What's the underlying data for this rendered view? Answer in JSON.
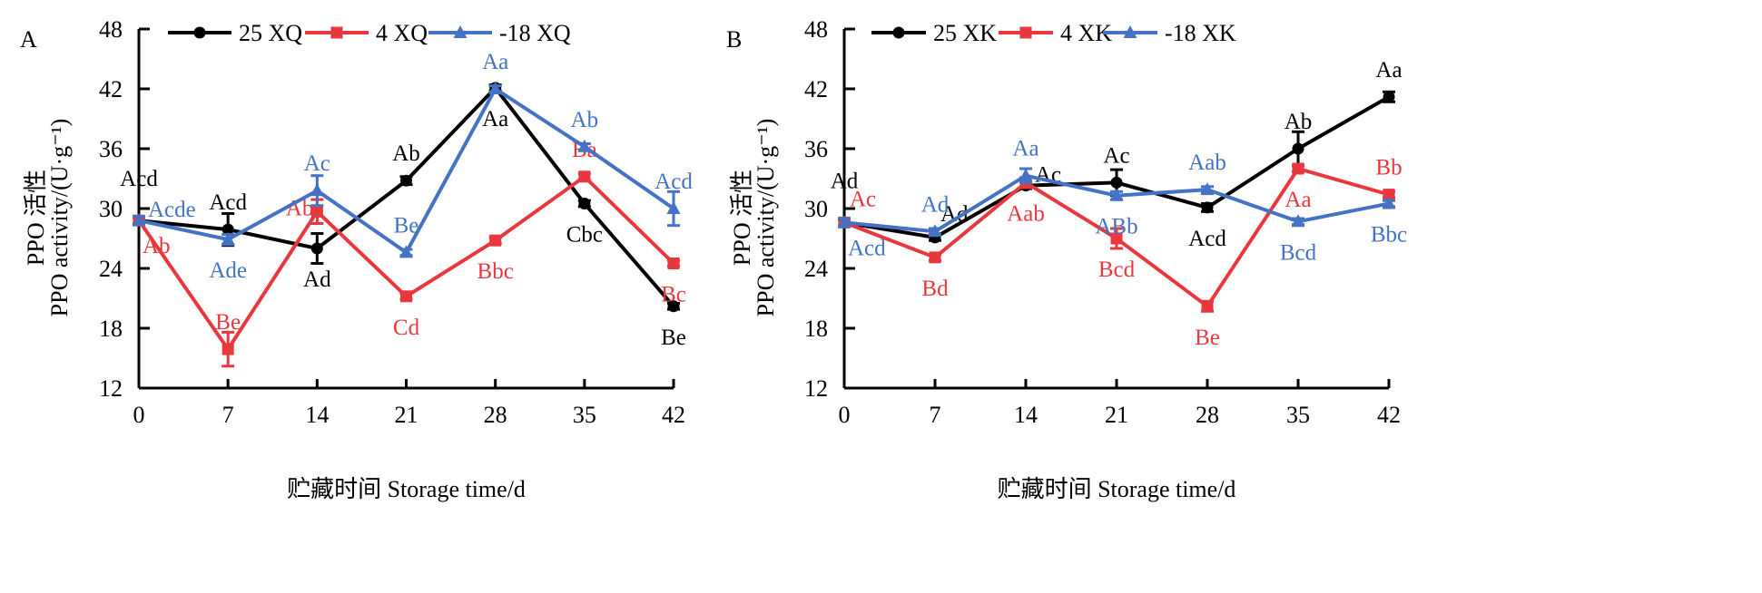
{
  "chart_data": [
    {
      "type": "line",
      "panel_letter": "A",
      "x": [
        0,
        7,
        14,
        21,
        28,
        35,
        42
      ],
      "xticks": [
        "0",
        "7",
        "14",
        "21",
        "28",
        "35",
        "42"
      ],
      "yticks": [
        "12",
        "18",
        "24",
        "30",
        "36",
        "42",
        "48"
      ],
      "ylim": [
        12,
        48
      ],
      "xlim": [
        0,
        42
      ],
      "xlabel": "贮藏时间 Storage time/d",
      "ylabel_cn": "PPO 活性",
      "ylabel_en": "PPO activity/(U·g⁻¹)",
      "legend_position": "top",
      "series": [
        {
          "name": "25 XQ",
          "color": "#000000",
          "marker": "circle",
          "values": [
            28.8,
            27.9,
            26.0,
            32.8,
            42.1,
            30.5,
            20.2
          ],
          "err": [
            0.3,
            1.6,
            1.5,
            0.4,
            0.3,
            0.3,
            0.3
          ],
          "labels": [
            "Acd",
            "Acd",
            "Ad",
            "Ab",
            "Aa",
            "Cbc",
            "Be"
          ],
          "label_pos": [
            "above-high",
            "above",
            "below",
            "above",
            "below",
            "below",
            "below"
          ]
        },
        {
          "name": "4 XQ",
          "color": "#e8383d",
          "marker": "square",
          "values": [
            28.8,
            15.9,
            29.7,
            21.2,
            26.8,
            33.2,
            24.5
          ],
          "err": [
            0.3,
            1.7,
            1.2,
            0.3,
            0.3,
            0.3,
            0.3
          ],
          "labels": [
            "Ab",
            "Be",
            "Ab",
            "Cd",
            "Bbc",
            "Ba",
            "Bc"
          ],
          "label_pos": [
            "below-right",
            "above",
            "left",
            "below",
            "below",
            "above",
            "below"
          ]
        },
        {
          "name": "-18 XQ",
          "color": "#4472c4",
          "marker": "triangle",
          "values": [
            28.8,
            26.9,
            31.8,
            25.6,
            42.0,
            36.2,
            30.0
          ],
          "err": [
            0.4,
            0.5,
            1.5,
            0.3,
            0.3,
            0.3,
            1.7
          ],
          "labels": [
            "Acde",
            "Ade",
            "Ac",
            "Be",
            "Aa",
            "Ab",
            "Acd"
          ],
          "label_pos": [
            "right",
            "below",
            "above",
            "above",
            "above",
            "above",
            "above"
          ]
        }
      ]
    },
    {
      "type": "line",
      "panel_letter": "B",
      "x": [
        0,
        7,
        14,
        21,
        28,
        35,
        42
      ],
      "xticks": [
        "0",
        "7",
        "14",
        "21",
        "28",
        "35",
        "42"
      ],
      "yticks": [
        "12",
        "18",
        "24",
        "30",
        "36",
        "42",
        "48"
      ],
      "ylim": [
        12,
        48
      ],
      "xlim": [
        0,
        42
      ],
      "xlabel": "贮藏时间 Storage time/d",
      "ylabel_cn": "PPO 活性",
      "ylabel_en": "PPO activity/(U·g⁻¹)",
      "legend_position": "top",
      "series": [
        {
          "name": "25 XK",
          "color": "#000000",
          "marker": "circle",
          "values": [
            28.6,
            27.1,
            32.3,
            32.6,
            30.1,
            36.0,
            41.2
          ],
          "err": [
            0.3,
            0.3,
            0.3,
            1.3,
            0.4,
            1.7,
            0.5
          ],
          "labels": [
            "Ad",
            "Ad",
            "Ac",
            "Ac",
            "Acd",
            "Ab",
            "Aa"
          ],
          "label_pos": [
            "above-high",
            "above-right",
            "right",
            "above",
            "below",
            "above",
            "above"
          ]
        },
        {
          "name": "4 XK",
          "color": "#e8383d",
          "marker": "square",
          "values": [
            28.6,
            25.1,
            32.6,
            27.0,
            20.2,
            34.0,
            31.4
          ],
          "err": [
            0.3,
            0.3,
            0.5,
            1.0,
            0.5,
            0.3,
            0.3
          ],
          "labels": [
            "Ac",
            "Bd",
            "Aab",
            "Bcd",
            "Be",
            "Aa",
            "Bb"
          ],
          "label_pos": [
            "above-right",
            "below",
            "below",
            "below",
            "below",
            "below",
            "above"
          ]
        },
        {
          "name": "-18 XK",
          "color": "#4472c4",
          "marker": "triangle",
          "values": [
            28.6,
            27.7,
            33.3,
            31.3,
            31.9,
            28.7,
            30.5
          ],
          "err": [
            0.4,
            0.3,
            0.7,
            0.4,
            0.3,
            0.3,
            0.3
          ],
          "labels": [
            "Acd",
            "Ad",
            "Aa",
            "ABb",
            "Aab",
            "Bcd",
            "Bbc"
          ],
          "label_pos": [
            "below-right",
            "above",
            "above",
            "below",
            "above",
            "below",
            "below"
          ]
        }
      ]
    }
  ]
}
